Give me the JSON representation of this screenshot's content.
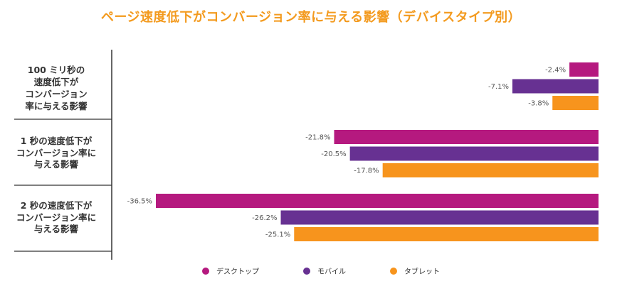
{
  "title": "ページ速度低下がコンバージョン率に与える影響（デバイスタイプ別）",
  "colors": {
    "title": "#f39a1e",
    "axis": "#333333",
    "value_label": "#555555"
  },
  "chart_data": {
    "type": "bar",
    "orientation": "horizontal",
    "categories": [
      "100 ミリ秒の\n速度低下が\nコンバージョン\n率に与える影響",
      "1 秒の速度低下が\nコンバージョン率に\n与える影響",
      "2 秒の速度低下が\nコンバージョン率に\n与える影響"
    ],
    "series": [
      {
        "name": "デスクトップ",
        "color": "#b5197f",
        "values": [
          -2.4,
          -21.8,
          -36.5
        ],
        "labels": [
          "-2.4%",
          "-21.8%",
          "-36.5%"
        ]
      },
      {
        "name": "モバイル",
        "color": "#673192",
        "values": [
          -7.1,
          -20.5,
          -26.2
        ],
        "labels": [
          "-7.1%",
          "-20.5%",
          "-26.2%"
        ]
      },
      {
        "name": "タブレット",
        "color": "#f7941d",
        "values": [
          -3.8,
          -17.8,
          -25.1
        ],
        "labels": [
          "-3.8%",
          "-17.8%",
          "-25.1%"
        ]
      }
    ],
    "legend_position": "bottom-center",
    "grid": false
  }
}
